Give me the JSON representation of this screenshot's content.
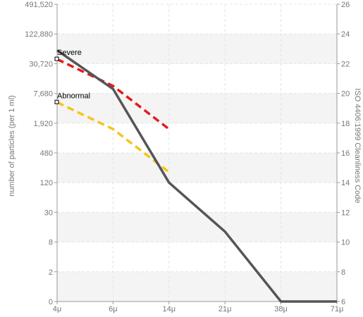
{
  "chart_data": {
    "type": "line",
    "x_categories": [
      "4μ",
      "6μ",
      "14μ",
      "21μ",
      "38μ",
      "71μ"
    ],
    "left_axis": {
      "title": "number of particles (per 1 ml)",
      "tick_labels": [
        "0",
        "2",
        "8",
        "30",
        "120",
        "480",
        "1,920",
        "7,680",
        "30,720",
        "122,880",
        "491,520"
      ],
      "scale": "log-like"
    },
    "right_axis": {
      "title": "ISO 4406:1999 Cleanliness Code",
      "ticks": [
        6,
        8,
        10,
        12,
        14,
        16,
        18,
        20,
        22,
        24,
        26
      ],
      "range": [
        6,
        26
      ]
    },
    "series": [
      {
        "name": "",
        "style": "solid",
        "color": "#555555",
        "x": [
          "4μ",
          "6μ",
          "14μ",
          "21μ",
          "38μ",
          "71μ"
        ],
        "code_values": [
          22.9,
          20.3,
          14.0,
          10.7,
          6.0,
          6.0
        ]
      },
      {
        "name": "Severe",
        "style": "dashed",
        "color": "#e41a1c",
        "x": [
          "4μ",
          "6μ",
          "14μ"
        ],
        "code_values": [
          22.3,
          20.5,
          17.6
        ]
      },
      {
        "name": "Abnormal",
        "style": "dashed",
        "color": "#f5c518",
        "x": [
          "4μ",
          "6μ",
          "14μ"
        ],
        "code_values": [
          19.4,
          17.6,
          14.7
        ]
      }
    ],
    "annotations": [
      {
        "text": "Severe",
        "x": "4μ",
        "code_value": 22.3
      },
      {
        "text": "Abnormal",
        "x": "4μ",
        "code_value": 19.4
      }
    ],
    "grid": true,
    "legend": "none"
  }
}
